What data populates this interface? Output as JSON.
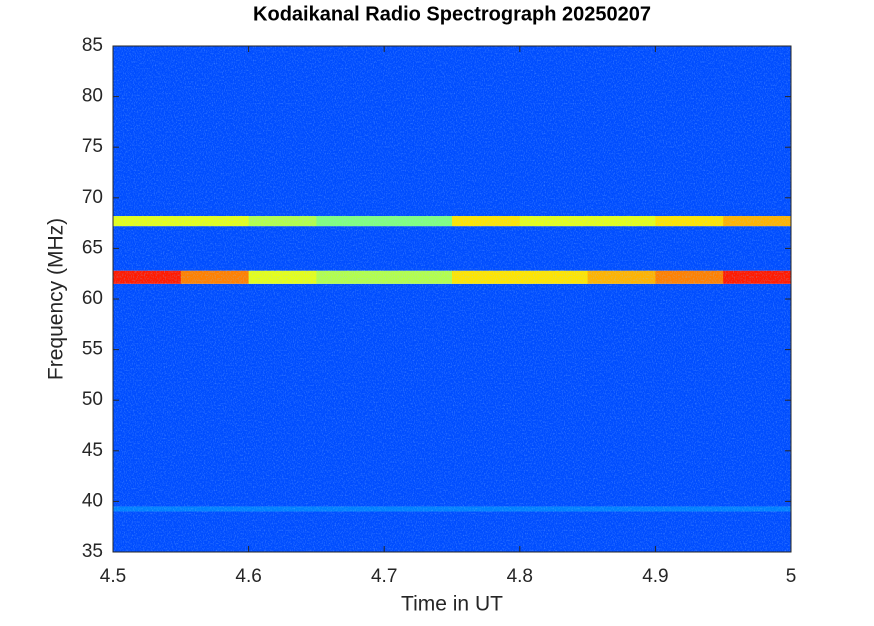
{
  "chart_data": {
    "type": "heatmap",
    "title": "Kodaikanal Radio Spectrograph  20250207",
    "xlabel": "Time in UT",
    "ylabel": "Frequency (MHz)",
    "colormap": "jet",
    "clim": [
      0,
      1
    ],
    "x_edges": [
      4.5,
      4.55,
      4.6,
      4.65,
      4.7,
      4.75,
      4.8,
      4.85,
      4.9,
      4.95,
      5
    ],
    "y_edges": [
      35,
      39,
      39.5,
      61.5,
      62.8,
      67.2,
      68.2,
      85
    ],
    "z": [
      [
        0.2,
        0.2,
        0.2,
        0.2,
        0.2,
        0.2,
        0.2,
        0.2,
        0.2,
        0.2
      ],
      [
        0.25,
        0.25,
        0.25,
        0.25,
        0.25,
        0.25,
        0.25,
        0.25,
        0.25,
        0.25
      ],
      [
        0.2,
        0.2,
        0.2,
        0.2,
        0.2,
        0.2,
        0.2,
        0.2,
        0.2,
        0.2
      ],
      [
        0.85,
        0.75,
        0.6,
        0.55,
        0.55,
        0.65,
        0.65,
        0.7,
        0.75,
        0.85
      ],
      [
        0.2,
        0.2,
        0.2,
        0.2,
        0.2,
        0.2,
        0.2,
        0.2,
        0.2,
        0.2
      ],
      [
        0.6,
        0.6,
        0.55,
        0.5,
        0.5,
        0.65,
        0.6,
        0.6,
        0.65,
        0.7
      ],
      [
        0.2,
        0.2,
        0.2,
        0.2,
        0.2,
        0.2,
        0.2,
        0.2,
        0.2,
        0.2
      ]
    ],
    "xlim": [
      4.5,
      5
    ],
    "xticks": [
      4.5,
      4.6,
      4.7,
      4.8,
      4.9,
      5
    ],
    "ylim": [
      35,
      85
    ],
    "yticks": [
      35,
      40,
      45,
      50,
      55,
      60,
      65,
      70,
      75,
      80,
      85
    ]
  }
}
